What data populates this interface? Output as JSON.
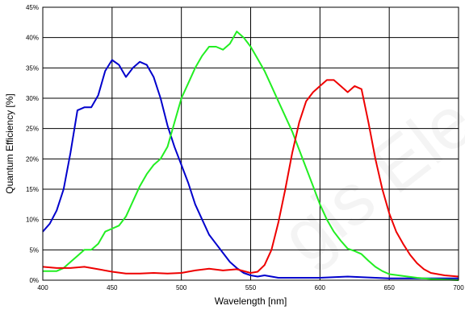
{
  "chart_data": {
    "type": "line",
    "title": "",
    "xlabel": "Wavelength [nm]",
    "ylabel": "Quantum Efficiency [%]",
    "xlim": [
      400,
      700
    ],
    "ylim": [
      0,
      45
    ],
    "x_ticks": [
      400,
      450,
      500,
      550,
      600,
      650,
      700
    ],
    "x_tick_labels": [
      "400",
      "450",
      "500",
      "550",
      "600",
      "650",
      "700"
    ],
    "y_ticks": [
      0,
      5,
      10,
      15,
      20,
      25,
      30,
      35,
      40,
      45
    ],
    "y_tick_labels": [
      "0%",
      "5%",
      "10%",
      "15%",
      "20%",
      "25%",
      "30%",
      "35%",
      "40%",
      "45%"
    ],
    "grid": true,
    "legend": "none",
    "series": [
      {
        "color": "#0000cc",
        "points": [
          [
            400,
            8
          ],
          [
            405,
            9.3
          ],
          [
            410,
            11.5
          ],
          [
            415,
            15
          ],
          [
            420,
            21
          ],
          [
            425,
            28
          ],
          [
            430,
            28.5
          ],
          [
            435,
            28.5
          ],
          [
            440,
            30.5
          ],
          [
            445,
            34.5
          ],
          [
            450,
            36.3
          ],
          [
            455,
            35.5
          ],
          [
            460,
            33.5
          ],
          [
            465,
            35
          ],
          [
            470,
            36
          ],
          [
            475,
            35.5
          ],
          [
            480,
            33.5
          ],
          [
            485,
            30
          ],
          [
            490,
            25.5
          ],
          [
            495,
            22
          ],
          [
            500,
            19
          ],
          [
            505,
            16
          ],
          [
            510,
            12.5
          ],
          [
            515,
            10
          ],
          [
            520,
            7.5
          ],
          [
            525,
            6
          ],
          [
            530,
            4.5
          ],
          [
            535,
            3
          ],
          [
            540,
            2
          ],
          [
            545,
            1.2
          ],
          [
            550,
            0.8
          ],
          [
            555,
            0.6
          ],
          [
            560,
            0.8
          ],
          [
            565,
            0.6
          ],
          [
            570,
            0.4
          ],
          [
            580,
            0.4
          ],
          [
            590,
            0.4
          ],
          [
            600,
            0.4
          ],
          [
            610,
            0.5
          ],
          [
            620,
            0.6
          ],
          [
            630,
            0.5
          ],
          [
            640,
            0.4
          ],
          [
            650,
            0.3
          ],
          [
            660,
            0.3
          ],
          [
            680,
            0.3
          ],
          [
            700,
            0.3
          ]
        ]
      },
      {
        "color": "#22ee22",
        "points": [
          [
            400,
            1.5
          ],
          [
            410,
            1.5
          ],
          [
            415,
            2
          ],
          [
            420,
            3
          ],
          [
            425,
            4
          ],
          [
            430,
            5
          ],
          [
            435,
            5
          ],
          [
            440,
            6
          ],
          [
            445,
            8
          ],
          [
            450,
            8.5
          ],
          [
            455,
            9
          ],
          [
            460,
            10.5
          ],
          [
            465,
            13
          ],
          [
            470,
            15.5
          ],
          [
            475,
            17.5
          ],
          [
            480,
            19
          ],
          [
            485,
            20
          ],
          [
            490,
            22
          ],
          [
            495,
            26
          ],
          [
            500,
            30
          ],
          [
            505,
            32.5
          ],
          [
            510,
            35
          ],
          [
            515,
            37
          ],
          [
            520,
            38.5
          ],
          [
            525,
            38.5
          ],
          [
            530,
            38
          ],
          [
            535,
            39
          ],
          [
            540,
            41
          ],
          [
            545,
            40
          ],
          [
            550,
            38.5
          ],
          [
            555,
            36.5
          ],
          [
            560,
            34.5
          ],
          [
            565,
            32
          ],
          [
            570,
            29.5
          ],
          [
            575,
            27
          ],
          [
            580,
            24.5
          ],
          [
            585,
            21.5
          ],
          [
            590,
            18.5
          ],
          [
            595,
            15.5
          ],
          [
            600,
            12.5
          ],
          [
            605,
            10
          ],
          [
            610,
            8
          ],
          [
            615,
            6.5
          ],
          [
            620,
            5.2
          ],
          [
            625,
            4.8
          ],
          [
            630,
            4.3
          ],
          [
            635,
            3.2
          ],
          [
            640,
            2.2
          ],
          [
            645,
            1.5
          ],
          [
            650,
            1
          ],
          [
            660,
            0.7
          ],
          [
            670,
            0.4
          ],
          [
            680,
            0.2
          ],
          [
            690,
            0.1
          ],
          [
            700,
            0
          ]
        ]
      },
      {
        "color": "#ee0000",
        "points": [
          [
            400,
            2.2
          ],
          [
            410,
            2
          ],
          [
            420,
            2
          ],
          [
            430,
            2.2
          ],
          [
            440,
            1.8
          ],
          [
            450,
            1.4
          ],
          [
            460,
            1.1
          ],
          [
            470,
            1.1
          ],
          [
            480,
            1.2
          ],
          [
            490,
            1.1
          ],
          [
            500,
            1.2
          ],
          [
            510,
            1.6
          ],
          [
            520,
            1.9
          ],
          [
            530,
            1.6
          ],
          [
            540,
            1.8
          ],
          [
            550,
            1.2
          ],
          [
            555,
            1.4
          ],
          [
            560,
            2.5
          ],
          [
            565,
            5
          ],
          [
            570,
            9.5
          ],
          [
            575,
            15
          ],
          [
            580,
            21
          ],
          [
            585,
            26
          ],
          [
            590,
            29.5
          ],
          [
            595,
            31
          ],
          [
            600,
            32
          ],
          [
            605,
            33
          ],
          [
            610,
            33
          ],
          [
            615,
            32
          ],
          [
            620,
            31
          ],
          [
            625,
            32
          ],
          [
            630,
            31.5
          ],
          [
            635,
            26
          ],
          [
            640,
            20
          ],
          [
            645,
            15
          ],
          [
            650,
            11
          ],
          [
            655,
            8
          ],
          [
            660,
            6
          ],
          [
            665,
            4.2
          ],
          [
            670,
            2.8
          ],
          [
            675,
            1.8
          ],
          [
            680,
            1.2
          ],
          [
            690,
            0.8
          ],
          [
            700,
            0.6
          ]
        ]
      }
    ]
  }
}
